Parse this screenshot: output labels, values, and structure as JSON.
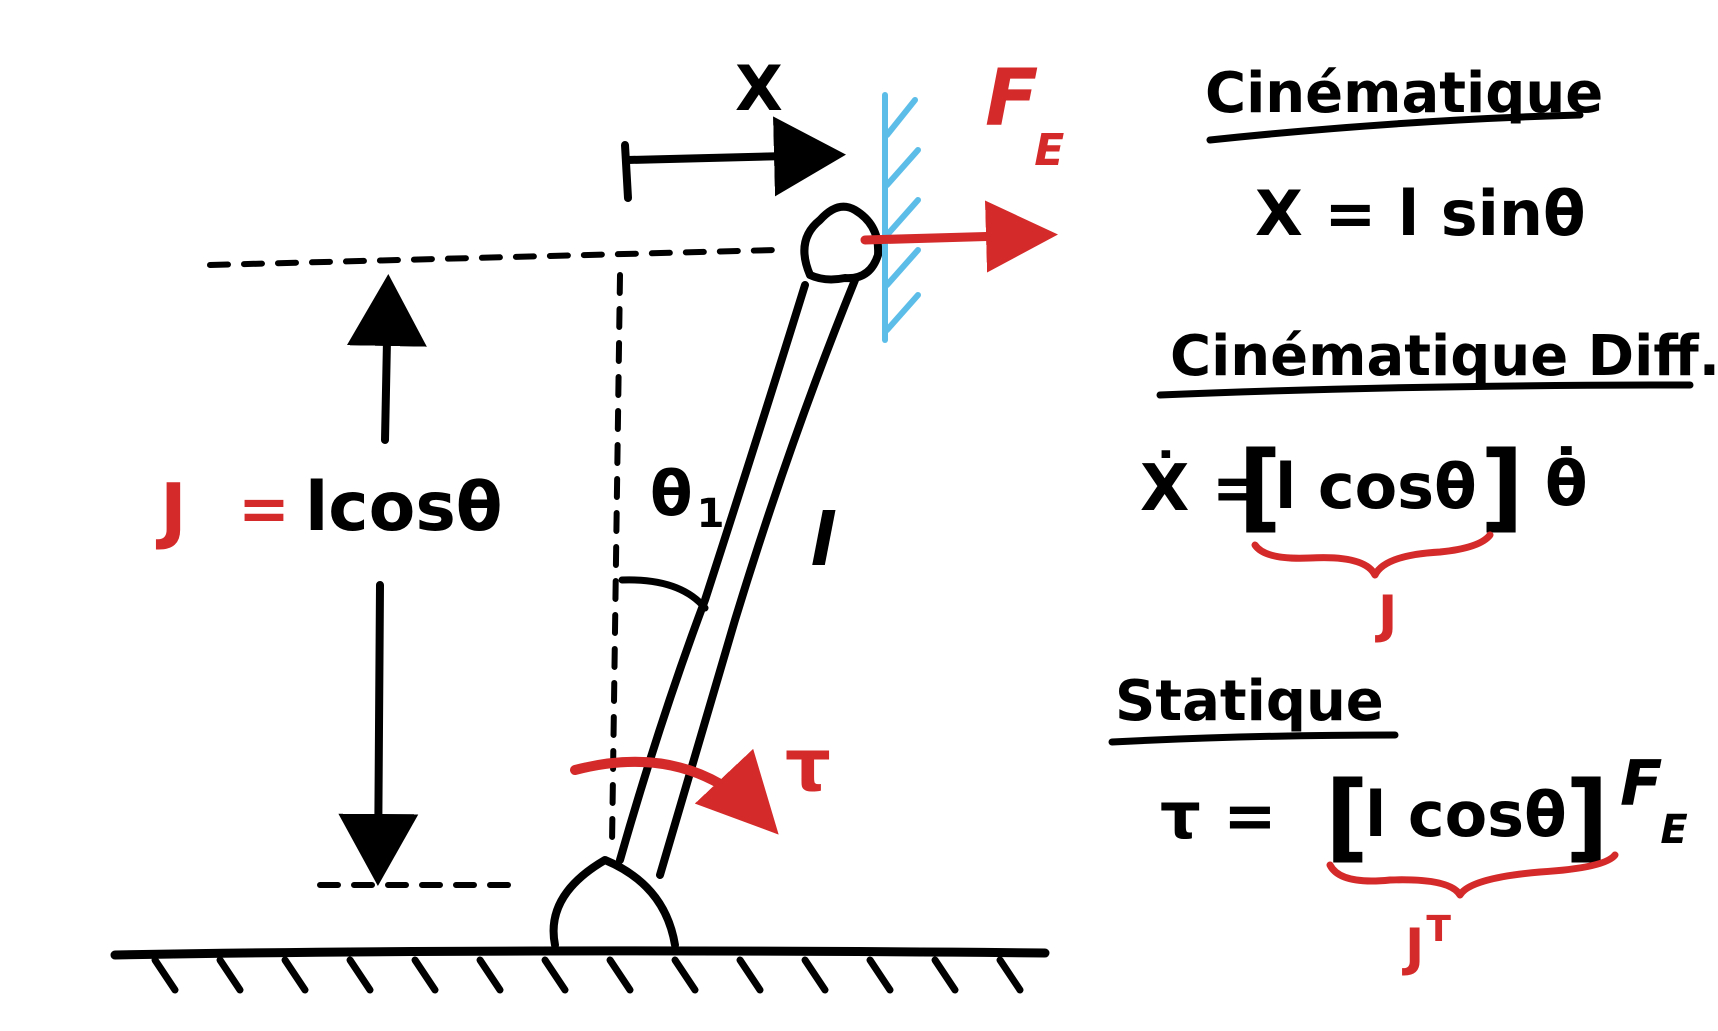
{
  "colors": {
    "ink": "#000000",
    "accent": "#d42a2a",
    "wall": "#5cbde8",
    "background": "#ffffff"
  },
  "diagram": {
    "labels": {
      "x_label": "X",
      "force_label_f": "F",
      "force_label_sub": "E",
      "y_eq_lhs": "J",
      "y_eq_equals": "=",
      "y_eq_rhs": "lcosθ",
      "theta_label": "θ",
      "theta_sub": "1",
      "length_label": "l",
      "torque_label": "τ"
    }
  },
  "notes": {
    "kinematics": {
      "heading": "Cinématique",
      "equation": "X = l sinθ"
    },
    "diff_kinematics": {
      "heading": "Cinématique Diff.",
      "lhs": "Ẋ =",
      "bracket_open": "[",
      "matrix": "l cosθ",
      "bracket_close": "]",
      "rhs": "θ̇",
      "brace_label": "J"
    },
    "statics": {
      "heading": "Statique",
      "lhs": "τ =",
      "bracket_open": "[",
      "matrix": "l cosθ",
      "bracket_close": "]",
      "rhs_f": "F",
      "rhs_sub": "E",
      "brace_label": "J",
      "brace_sup": "T"
    }
  }
}
